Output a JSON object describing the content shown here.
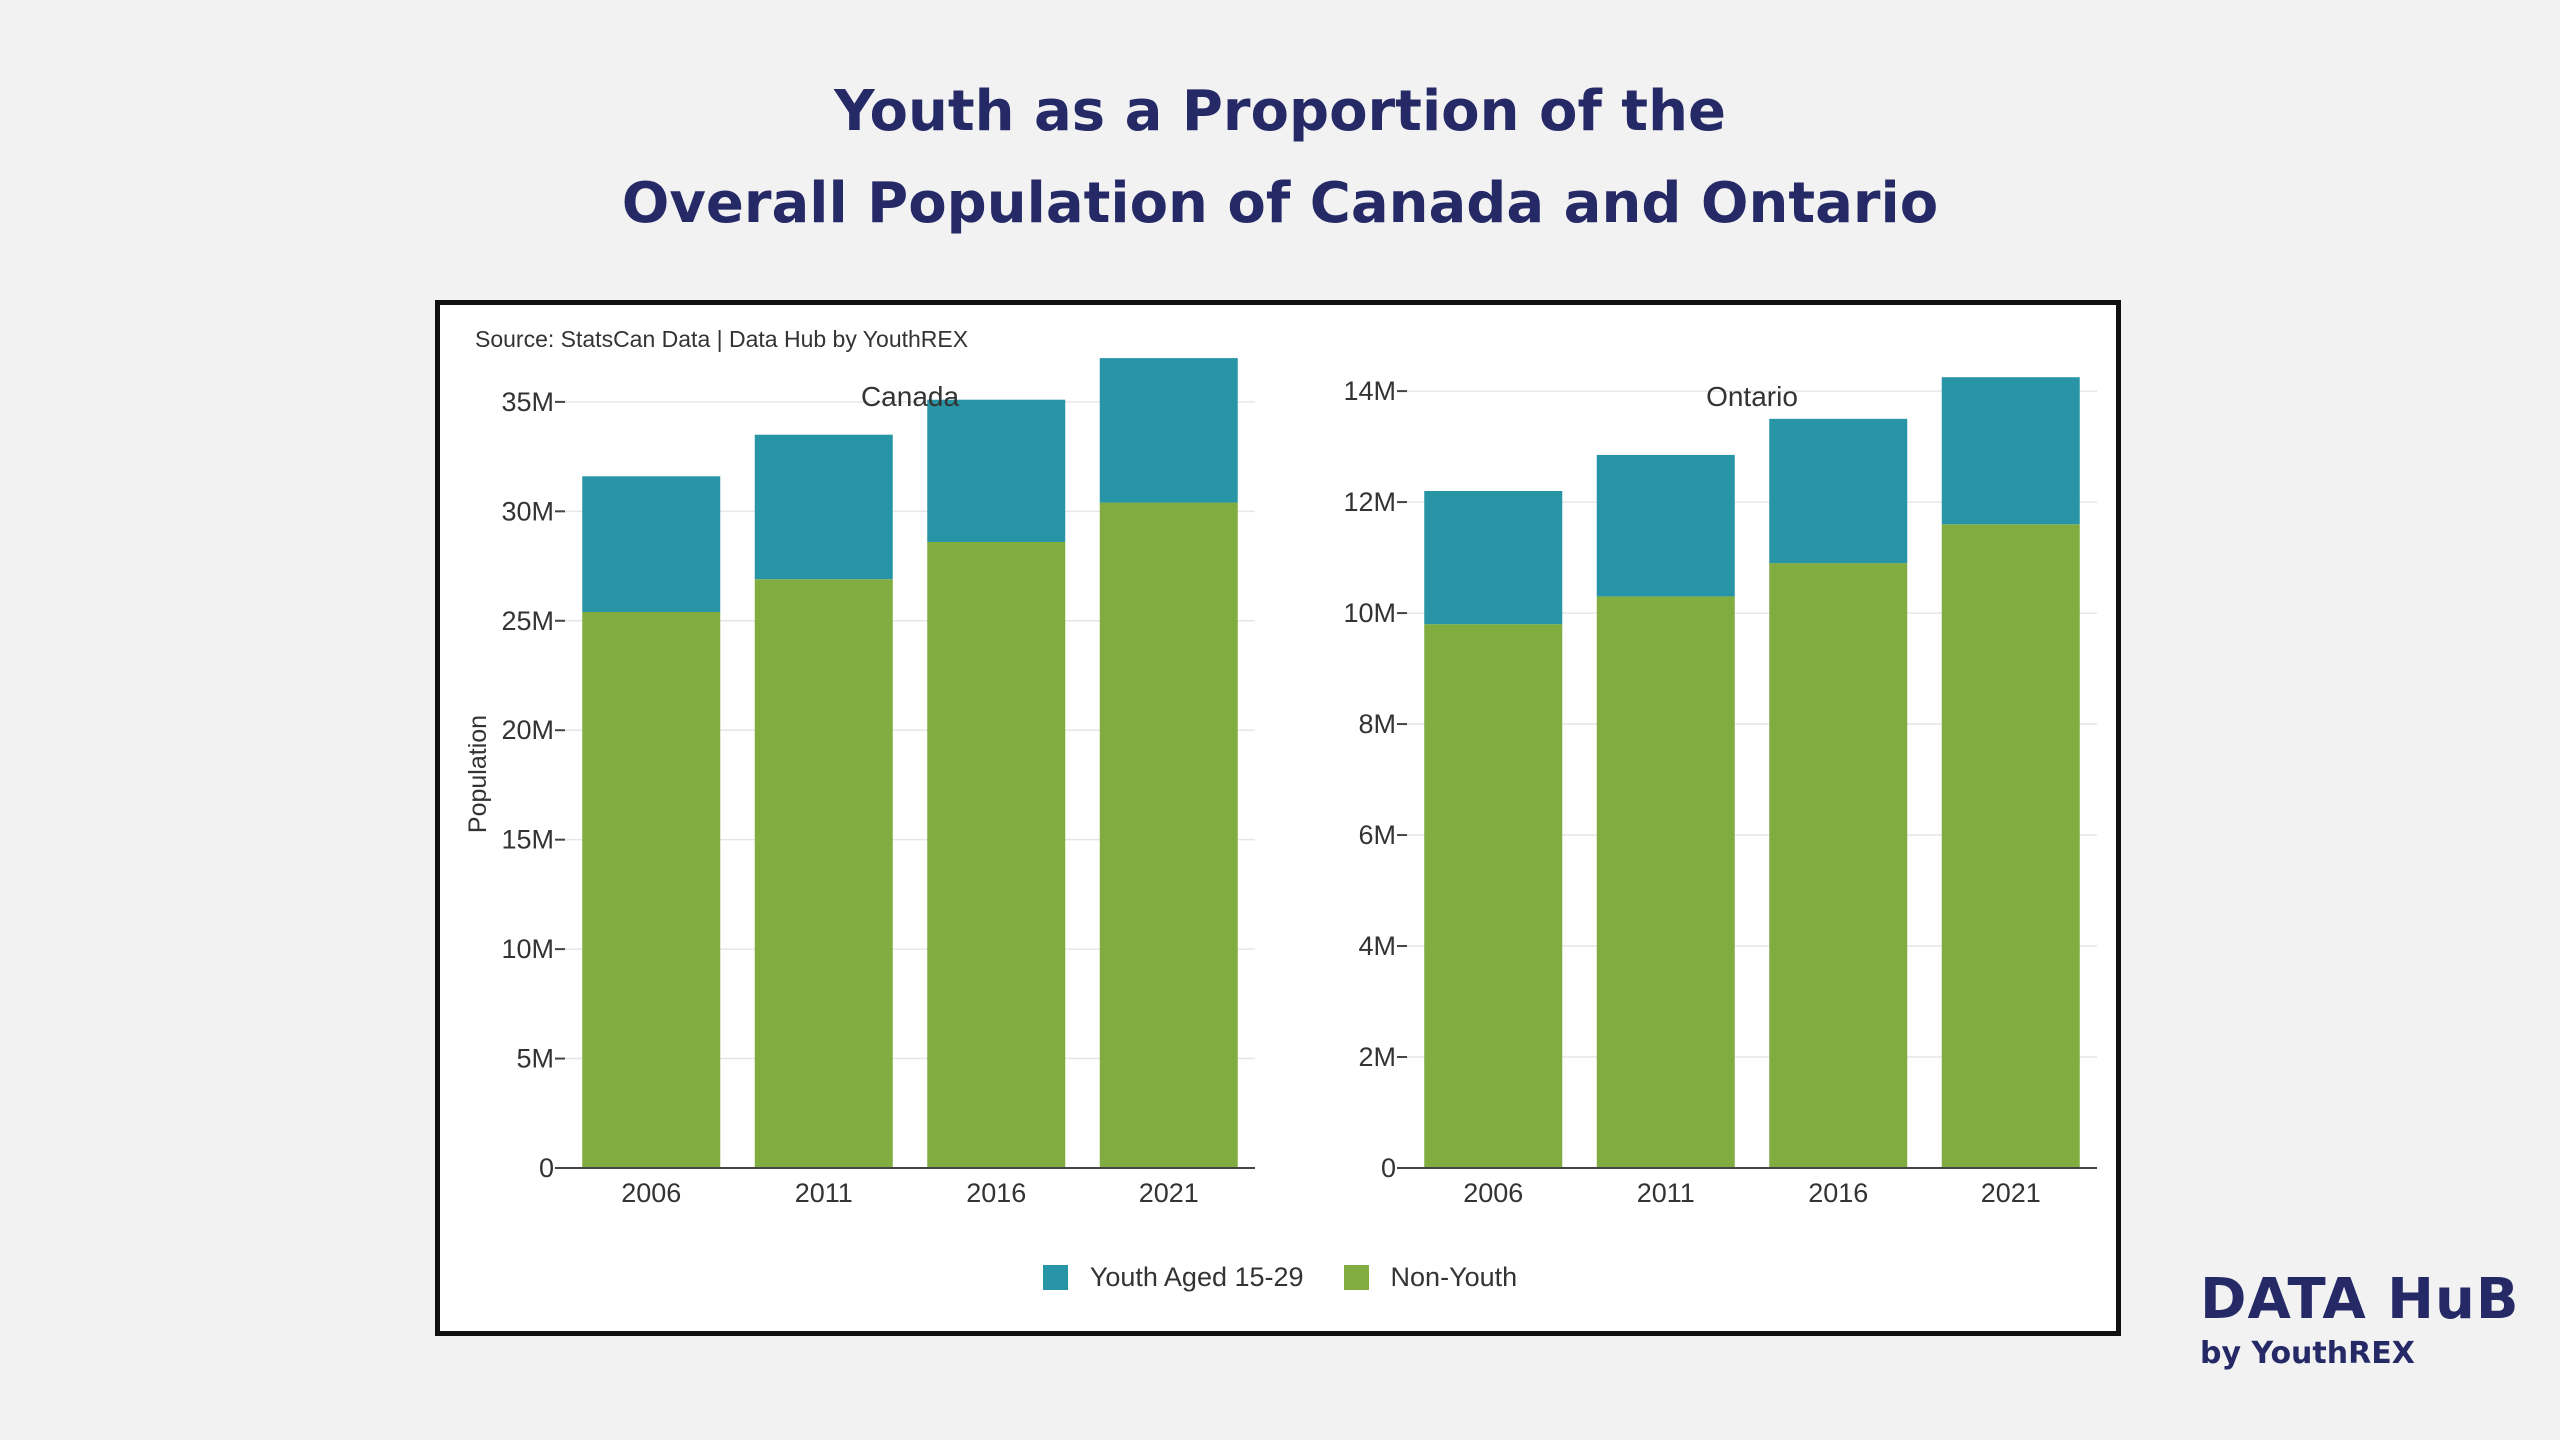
{
  "title": {
    "line1": "Youth as a Proportion of the",
    "line2": "Overall Population of Canada and Ontario"
  },
  "source": "Source: StatsCan Data | Data Hub by YouthREX",
  "legend": {
    "youth": "Youth Aged 15-29",
    "nonyouth": "Non-Youth"
  },
  "brand": {
    "main": "DATA HuB",
    "sub": "by YouthREX"
  },
  "colors": {
    "youth": "#2795a6",
    "nonyouth": "#80ac40",
    "title": "#252a67",
    "grid": "#e6e6e6",
    "axis": "#444444"
  },
  "chart_data": [
    {
      "type": "bar",
      "stacked": true,
      "title": "Canada",
      "ylabel": "Population",
      "categories": [
        "2006",
        "2011",
        "2016",
        "2021"
      ],
      "ylim": [
        0,
        36000000
      ],
      "yticks": [
        0,
        5000000,
        10000000,
        15000000,
        20000000,
        25000000,
        30000000,
        35000000
      ],
      "ytick_labels": [
        "0",
        "5M",
        "10M",
        "15M",
        "20M",
        "25M",
        "30M",
        "35M"
      ],
      "series": [
        {
          "name": "Non-Youth",
          "values": [
            25400000,
            26900000,
            28600000,
            30400000
          ]
        },
        {
          "name": "Youth Aged 15-29",
          "values": [
            6200000,
            6600000,
            6500000,
            6600000
          ]
        }
      ]
    },
    {
      "type": "bar",
      "stacked": true,
      "title": "Ontario",
      "ylabel": "",
      "categories": [
        "2006",
        "2011",
        "2016",
        "2021"
      ],
      "ylim": [
        0,
        14200000
      ],
      "yticks": [
        0,
        2000000,
        4000000,
        6000000,
        8000000,
        10000000,
        12000000,
        14000000
      ],
      "ytick_labels": [
        "0",
        "2M",
        "4M",
        "6M",
        "8M",
        "10M",
        "12M",
        "14M"
      ],
      "series": [
        {
          "name": "Non-Youth",
          "values": [
            9800000,
            10300000,
            10900000,
            11600000
          ]
        },
        {
          "name": "Youth Aged 15-29",
          "values": [
            2400000,
            2550000,
            2600000,
            2650000
          ]
        }
      ]
    }
  ]
}
